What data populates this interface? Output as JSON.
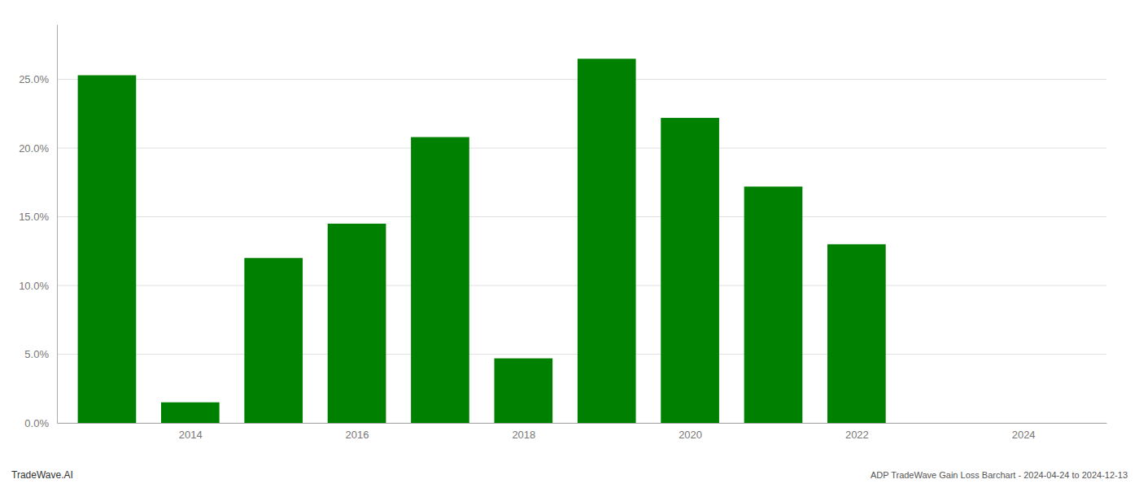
{
  "chart_data": {
    "type": "bar",
    "x": [
      2013,
      2014,
      2015,
      2016,
      2017,
      2018,
      2019,
      2020,
      2021,
      2022,
      2023,
      2024
    ],
    "values": [
      0.253,
      0.015,
      0.12,
      0.145,
      0.208,
      0.047,
      0.265,
      0.222,
      0.172,
      0.13,
      0.0,
      0.0
    ],
    "color": "#008000",
    "xlim": [
      2012.4,
      2025.0
    ],
    "xticks": [
      2014,
      2016,
      2018,
      2020,
      2022,
      2024
    ],
    "ylim": [
      0,
      0.29
    ],
    "yticks": [
      {
        "value": 0.0,
        "label": "0.0%"
      },
      {
        "value": 0.05,
        "label": "5.0%"
      },
      {
        "value": 0.1,
        "label": "10.0%"
      },
      {
        "value": 0.15,
        "label": "15.0%"
      },
      {
        "value": 0.2,
        "label": "20.0%"
      },
      {
        "value": 0.25,
        "label": "25.0%"
      }
    ],
    "grid": true,
    "annotations": [
      "TradeWave.AI",
      "ADP TradeWave Gain Loss Barchart - 2024-04-24 to 2024-12-13"
    ]
  }
}
